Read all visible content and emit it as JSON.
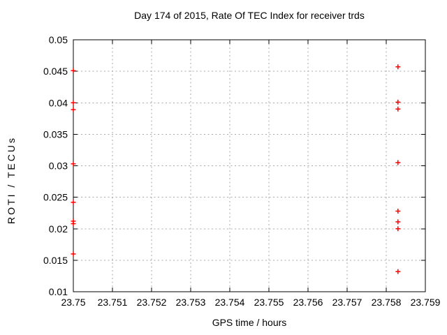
{
  "chart_data": {
    "type": "scatter",
    "title": "Day 174 of 2015, Rate Of TEC Index for receiver trds",
    "xlabel": "GPS time / hours",
    "ylabel": "ROTI / TECUs",
    "xlim": [
      23.75,
      23.759
    ],
    "ylim": [
      0.01,
      0.05
    ],
    "xticks": [
      23.75,
      23.751,
      23.752,
      23.753,
      23.754,
      23.755,
      23.756,
      23.757,
      23.758,
      23.759
    ],
    "xtick_labels": [
      "23.75",
      "23.751",
      "23.752",
      "23.753",
      "23.754",
      "23.755",
      "23.756",
      "23.757",
      "23.758",
      "23.759"
    ],
    "yticks": [
      0.01,
      0.015,
      0.02,
      0.025,
      0.03,
      0.035,
      0.04,
      0.045,
      0.05
    ],
    "ytick_labels": [
      "0.01",
      "0.015",
      "0.02",
      "0.025",
      "0.03",
      "0.035",
      "0.04",
      "0.045",
      "0.05"
    ],
    "grid": true,
    "legend": false,
    "marker": "plus",
    "marker_color": "#ff0000",
    "grid_color": "#a8a8a8",
    "axis_color": "#000000",
    "series": [
      {
        "name": "ROTI",
        "points": [
          [
            23.75,
            0.0451
          ],
          [
            23.75,
            0.04
          ],
          [
            23.75,
            0.0389
          ],
          [
            23.75,
            0.0303
          ],
          [
            23.75,
            0.0242
          ],
          [
            23.75,
            0.0212
          ],
          [
            23.75,
            0.0208
          ],
          [
            23.75,
            0.016
          ],
          [
            23.7583,
            0.0457
          ],
          [
            23.7583,
            0.0401
          ],
          [
            23.7583,
            0.039
          ],
          [
            23.7583,
            0.0305
          ],
          [
            23.7583,
            0.0228
          ],
          [
            23.7583,
            0.0211
          ],
          [
            23.7583,
            0.02
          ],
          [
            23.7583,
            0.0132
          ]
        ]
      }
    ]
  }
}
